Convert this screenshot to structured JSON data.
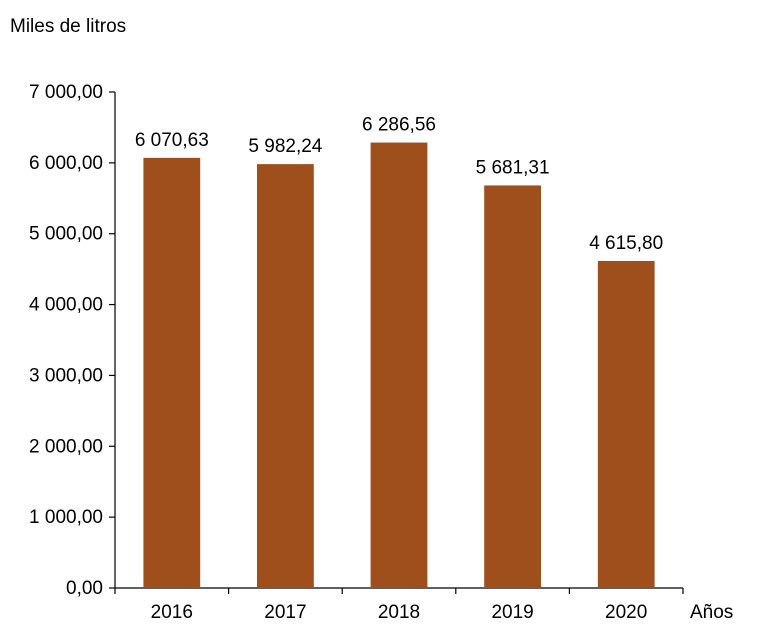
{
  "chart_data": {
    "type": "bar",
    "title": "",
    "ylabel": "Miles de litros",
    "xlabel": "Años",
    "categories": [
      "2016",
      "2017",
      "2018",
      "2019",
      "2020"
    ],
    "values": [
      6070.63,
      5982.24,
      6286.56,
      5681.31,
      4615.8
    ],
    "value_labels": [
      "6 070,63",
      "5 982,24",
      "6 286,56",
      "5 681,31",
      "4 615,80"
    ],
    "ylim": [
      0,
      7000
    ],
    "yticks": [
      0,
      1000,
      2000,
      3000,
      4000,
      5000,
      6000,
      7000
    ],
    "ytick_labels": [
      "0,00",
      "1 000,00",
      "2 000,00",
      "3 000,00",
      "4 000,00",
      "5 000,00",
      "6 000,00",
      "7 000,00"
    ],
    "grid": false,
    "legend": "none",
    "colors": {
      "bar": "#9e4f1b",
      "axis": "#000000",
      "text": "#000000"
    }
  }
}
